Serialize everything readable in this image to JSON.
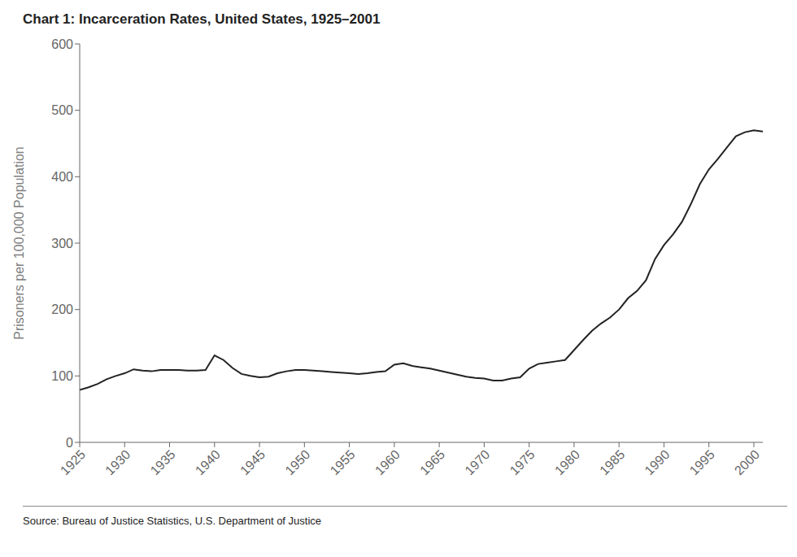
{
  "chart_data": {
    "type": "line",
    "title": "Chart 1: Incarceration Rates, United States, 1925–2001",
    "ylabel": "Prisoners per 100,000 Population",
    "annotation": "Source: Bureau of Justice Statistics, U.S. Department of Justice",
    "x": [
      1925,
      1926,
      1927,
      1928,
      1929,
      1930,
      1931,
      1932,
      1933,
      1934,
      1935,
      1936,
      1937,
      1938,
      1939,
      1940,
      1941,
      1942,
      1943,
      1944,
      1945,
      1946,
      1947,
      1948,
      1949,
      1950,
      1951,
      1952,
      1953,
      1954,
      1955,
      1956,
      1957,
      1958,
      1959,
      1960,
      1961,
      1962,
      1963,
      1964,
      1965,
      1966,
      1967,
      1968,
      1969,
      1970,
      1971,
      1972,
      1973,
      1974,
      1975,
      1976,
      1977,
      1978,
      1979,
      1980,
      1981,
      1982,
      1983,
      1984,
      1985,
      1986,
      1987,
      1988,
      1989,
      1990,
      1991,
      1992,
      1993,
      1994,
      1995,
      1996,
      1997,
      1998,
      1999,
      2000,
      2001
    ],
    "values": [
      79,
      83,
      88,
      95,
      100,
      104,
      110,
      108,
      107,
      109,
      109,
      109,
      108,
      108,
      109,
      131,
      124,
      112,
      103,
      100,
      98,
      99,
      104,
      107,
      109,
      109,
      108,
      107,
      106,
      105,
      104,
      103,
      104,
      106,
      107,
      117,
      119,
      115,
      113,
      111,
      108,
      105,
      102,
      99,
      97,
      96,
      93,
      93,
      96,
      98,
      111,
      118,
      120,
      122,
      124,
      139,
      154,
      168,
      179,
      188,
      200,
      217,
      228,
      244,
      276,
      297,
      313,
      332,
      359,
      389,
      411,
      427,
      444,
      461,
      467,
      470,
      468
    ],
    "color": "#222222",
    "xlim": [
      1925,
      2001
    ],
    "ylim": [
      0,
      600
    ],
    "xticks": [
      1925,
      1930,
      1935,
      1940,
      1945,
      1950,
      1955,
      1960,
      1965,
      1970,
      1975,
      1980,
      1985,
      1990,
      1995,
      2000
    ],
    "yticks": [
      0,
      100,
      200,
      300,
      400,
      500,
      600
    ],
    "grid": false
  }
}
